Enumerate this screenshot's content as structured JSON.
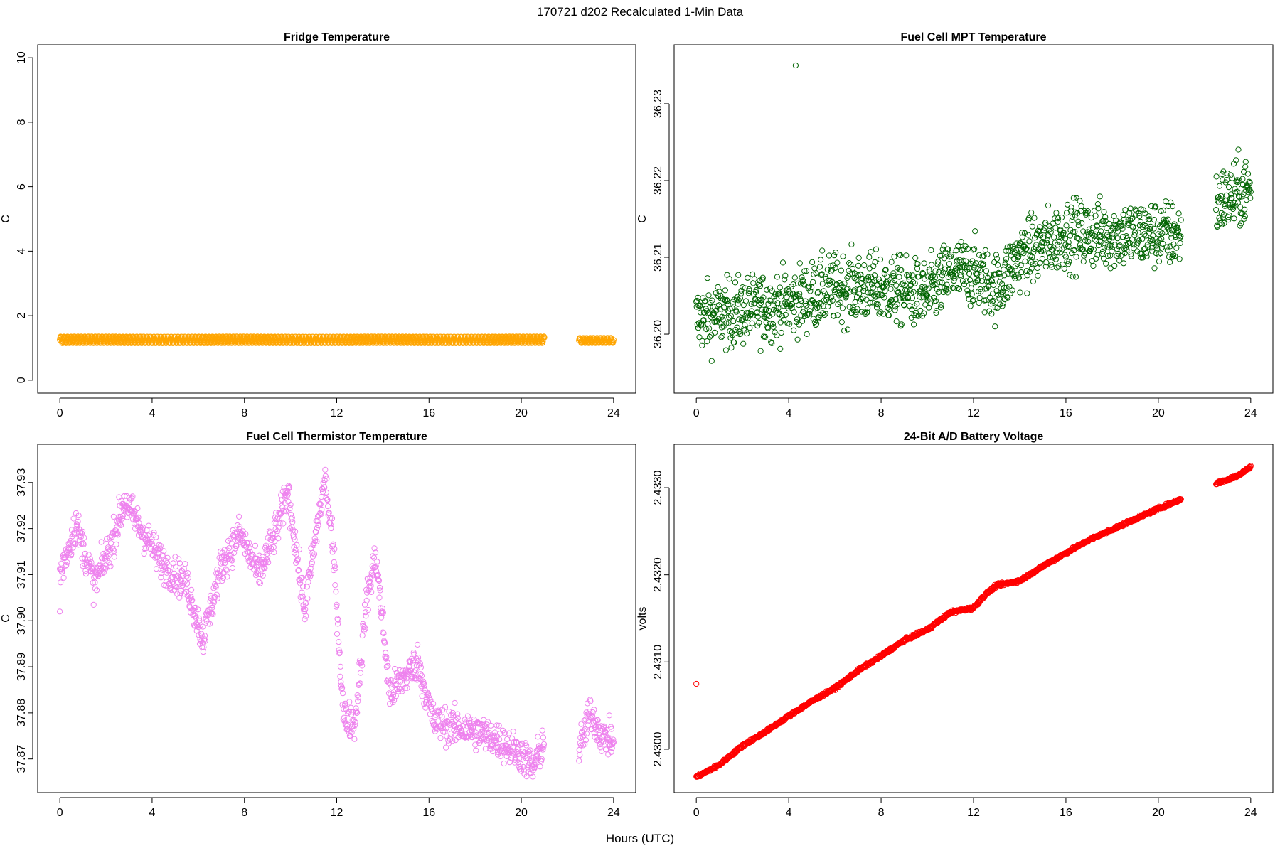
{
  "figure": {
    "title": "170721   d202   Recalculated 1-Min Data",
    "xlabel": "Hours (UTC)"
  },
  "chart_data": [
    {
      "type": "scatter",
      "title": "Fridge Temperature",
      "xlabel": "",
      "ylabel": "C",
      "xlim": [
        0,
        24
      ],
      "ylim": [
        0,
        10
      ],
      "xticks": [
        "0",
        "4",
        "8",
        "12",
        "16",
        "20",
        "24"
      ],
      "yticks": [
        "0",
        "2",
        "4",
        "6",
        "8",
        "10"
      ],
      "color": "#FFA500",
      "marker": "open-circle",
      "series": [
        {
          "segments": [
            {
              "x": [
                0.0,
                21.0
              ],
              "y_center": 1.25,
              "y_band": [
                1.12,
                1.38
              ]
            },
            {
              "x": [
                22.5,
                24.0
              ],
              "y_center": 1.23,
              "y_band": [
                1.13,
                1.33
              ]
            }
          ]
        }
      ]
    },
    {
      "type": "scatter",
      "title": "Fuel Cell MPT Temperature",
      "xlabel": "",
      "ylabel": "C",
      "xlim": [
        0,
        24
      ],
      "ylim": [
        36.194,
        36.236
      ],
      "xticks": [
        "0",
        "4",
        "8",
        "12",
        "16",
        "20",
        "24"
      ],
      "yticks": [
        "36.20",
        "36.21",
        "36.22",
        "36.23"
      ],
      "color": "#006400",
      "marker": "open-circle",
      "series": [
        {
          "trend_x": [
            0,
            2,
            4,
            6,
            8,
            10,
            11,
            12,
            13,
            14,
            16,
            18,
            20,
            21,
            22.5,
            24
          ],
          "trend_y": [
            36.202,
            36.203,
            36.204,
            36.206,
            36.206,
            36.205,
            36.208,
            36.208,
            36.206,
            36.21,
            36.213,
            36.213,
            36.213,
            36.213,
            36.217,
            36.219
          ],
          "spread": 0.004,
          "gap": [
            21.0,
            22.5
          ],
          "outliers": [
            {
              "x": 4.3,
              "y": 36.235
            }
          ]
        }
      ]
    },
    {
      "type": "scatter",
      "title": "Fuel Cell Thermistor Temperature",
      "xlabel": "",
      "ylabel": "C",
      "xlim": [
        0,
        24
      ],
      "ylim": [
        37.8655,
        37.9355
      ],
      "xticks": [
        "0",
        "4",
        "8",
        "12",
        "16",
        "20",
        "24"
      ],
      "yticks": [
        "37.87",
        "37.88",
        "37.89",
        "37.90",
        "37.91",
        "37.92",
        "37.93"
      ],
      "color": "#EE82EE",
      "marker": "open-circle",
      "series": [
        {
          "trend_x": [
            0,
            0.7,
            1.5,
            2.2,
            2.8,
            3.5,
            4.5,
            5.5,
            6.2,
            7.0,
            7.8,
            8.6,
            9.2,
            9.9,
            10.6,
            11.2,
            11.5,
            11.9,
            12.3,
            12.8,
            13.3,
            13.7,
            14.3,
            14.8,
            15.5,
            16.2,
            17.0,
            18.0,
            19.0,
            20.0,
            20.5,
            21.0,
            22.5,
            23.0,
            23.5,
            24.0
          ],
          "trend_y": [
            37.91,
            37.921,
            37.908,
            37.916,
            37.926,
            37.92,
            37.912,
            37.908,
            37.896,
            37.912,
            37.919,
            37.91,
            37.917,
            37.928,
            37.902,
            37.922,
            37.931,
            37.912,
            37.879,
            37.878,
            37.905,
            37.914,
            37.884,
            37.887,
            37.891,
            37.878,
            37.877,
            37.876,
            37.874,
            37.871,
            37.868,
            37.874,
            37.872,
            37.88,
            37.875,
            37.874
          ],
          "spread": 0.0035,
          "gap": [
            21.0,
            22.5
          ],
          "outliers": [
            {
              "x": 0.0,
              "y": 37.902
            }
          ]
        }
      ]
    },
    {
      "type": "scatter",
      "title": "24-Bit A/D Battery Voltage",
      "xlabel": "",
      "ylabel": "volts",
      "xlim": [
        0,
        24
      ],
      "ylim": [
        2.42965,
        2.43335
      ],
      "xticks": [
        "0",
        "4",
        "8",
        "12",
        "16",
        "20",
        "24"
      ],
      "yticks": [
        "2.4300",
        "2.4310",
        "2.4320",
        "2.4330"
      ],
      "color": "#FF0000",
      "marker": "open-circle",
      "series": [
        {
          "trend_x": [
            0,
            1,
            2,
            3,
            4,
            5,
            6,
            7,
            8,
            9,
            10,
            11,
            12,
            12.5,
            13,
            14,
            15,
            16,
            17,
            18,
            19,
            20,
            21,
            22.5,
            23,
            23.5,
            24
          ],
          "trend_y": [
            2.42968,
            2.42982,
            2.43004,
            2.4302,
            2.43038,
            2.43055,
            2.4307,
            2.4309,
            2.43107,
            2.43125,
            2.43137,
            2.43157,
            2.43162,
            2.43177,
            2.43188,
            2.43193,
            2.4321,
            2.43225,
            2.4324,
            2.43252,
            2.43264,
            2.43276,
            2.43287,
            2.43305,
            2.43309,
            2.43315,
            2.43324
          ],
          "spread": 1.5e-05,
          "gap": [
            21.0,
            22.5
          ],
          "outliers": [
            {
              "x": 0.0,
              "y": 2.43075
            }
          ]
        }
      ]
    }
  ]
}
